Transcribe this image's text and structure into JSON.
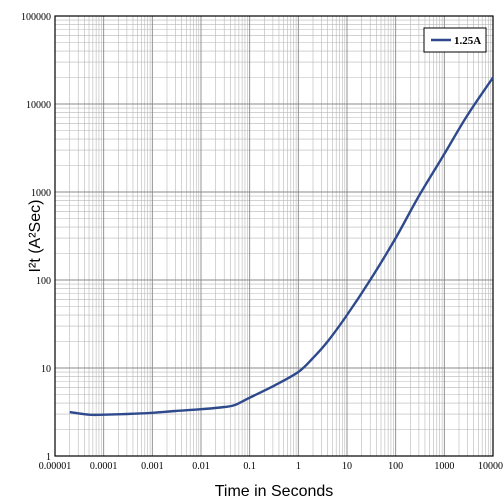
{
  "chart_data": {
    "type": "line",
    "title": "",
    "xlabel": "Time in Seconds",
    "ylabel": "I²t (A²Sec)",
    "xscale": "log",
    "yscale": "log",
    "xlim": [
      1e-05,
      10000
    ],
    "ylim": [
      1,
      100000
    ],
    "grid": true,
    "legend_position": "top-right",
    "x_tick_labels": [
      "0.00001",
      "0.0001",
      "0.001",
      "0.01",
      "0.1",
      "1",
      "10",
      "100",
      "1000",
      "10000"
    ],
    "y_tick_labels": [
      "1",
      "10",
      "100",
      "1000",
      "10000",
      "100000"
    ],
    "series": [
      {
        "name": "1.25A",
        "color": "#2e4a8c",
        "x": [
          2e-05,
          5e-05,
          0.0001,
          0.0003,
          0.001,
          0.003,
          0.01,
          0.03,
          0.05,
          0.1,
          0.3,
          1,
          2,
          4,
          10,
          30,
          100,
          300,
          1000,
          3000,
          10000
        ],
        "y": [
          3.15,
          2.95,
          2.95,
          3.0,
          3.1,
          3.25,
          3.4,
          3.6,
          3.8,
          4.6,
          6.2,
          9.0,
          13,
          20,
          40,
          100,
          300,
          900,
          2700,
          7500,
          20000
        ]
      }
    ]
  }
}
